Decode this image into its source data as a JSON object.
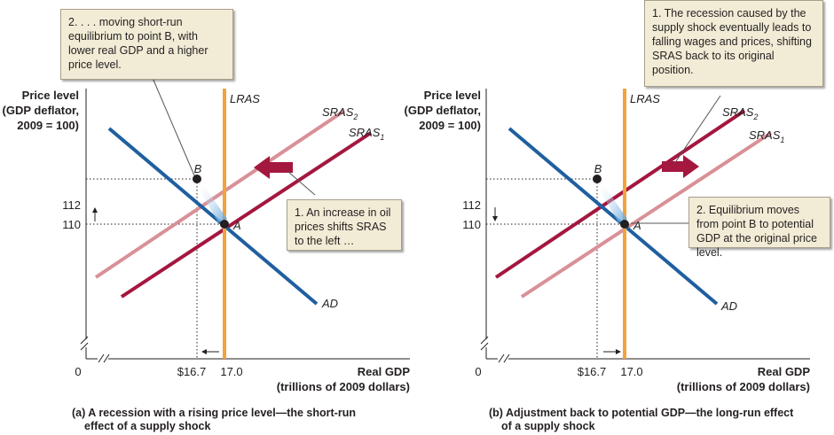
{
  "panels": [
    {
      "id": "a",
      "y_title": [
        "Price level",
        "(GDP deflator,",
        "2009 = 100)"
      ],
      "x_title": [
        "Real GDP",
        "(trillions of 2009 dollars)"
      ],
      "origin": "0",
      "x_ticks": [
        "$16.7",
        "17.0"
      ],
      "y_ticks": [
        "112",
        "110"
      ],
      "curves": {
        "lras": "LRAS",
        "sras2": "SRAS",
        "sras2_sub": "2",
        "sras1": "SRAS",
        "sras1_sub": "1",
        "ad": "AD"
      },
      "points": {
        "b": "B",
        "a": "A"
      },
      "callout_top": "2. . . . moving short-run equilibrium to point B, with lower real GDP and a higher price level.",
      "callout_side": "1.  An increase in oil prices shifts SRAS to the left …",
      "caption": [
        "(a) A recession with a rising price level—the short-run",
        "effect of a supply shock"
      ]
    },
    {
      "id": "b",
      "y_title": [
        "Price level",
        "(GDP deflator,",
        "2009 = 100)"
      ],
      "x_title": [
        "Real GDP",
        "(trillions of 2009 dollars)"
      ],
      "origin": "0",
      "x_ticks": [
        "$16.7",
        "17.0"
      ],
      "y_ticks": [
        "112",
        "110"
      ],
      "curves": {
        "lras": "LRAS",
        "sras2": "SRAS",
        "sras2_sub": "2",
        "sras1": "SRAS",
        "sras1_sub": "1",
        "ad": "AD"
      },
      "points": {
        "b": "B",
        "a": "A"
      },
      "callout_top": "1.  The recession caused by the supply shock eventually leads to falling wages and prices, shifting SRAS back to its original position.",
      "callout_side": "2. Equilibrium moves from point B to potential GDP at the original price level.",
      "caption": [
        "(b) Adjustment back to potential GDP—the long-run effect",
        "of a supply shock"
      ]
    }
  ],
  "colors": {
    "lras": "#f4a23a",
    "ad": "#1f5fa0",
    "sras_dark": "#a4173f",
    "sras_light": "#d99097",
    "axis": "#231f20",
    "callout_bg": "#f2ecd6"
  }
}
